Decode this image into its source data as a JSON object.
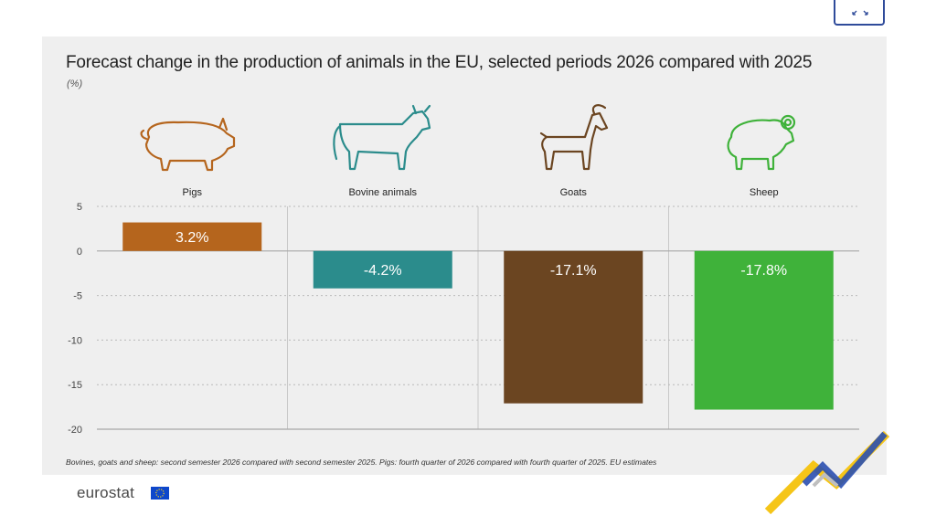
{
  "controls": {
    "expand_icon": "expand-icon"
  },
  "header": {
    "title": "Forecast change in the production of animals in the EU, selected periods 2026 compared with 2025",
    "unit": "(%)"
  },
  "footer": {
    "note": "Bovines, goats and sheep: second semester 2026 compared with second semester 2025. Pigs: fourth quarter of 2026 compared with fourth quarter of 2025. EU estimates",
    "logo_text": "eurostat",
    "logo_flag_icon": "eu-flag-icon"
  },
  "chart_data": {
    "type": "bar",
    "title": "Forecast change in the production of animals in the EU, selected periods 2026 compared with 2025",
    "ylabel": "(%)",
    "xlabel": "",
    "categories": [
      "Pigs",
      "Bovine animals",
      "Goats",
      "Sheep"
    ],
    "values": [
      3.2,
      -4.2,
      -17.1,
      -17.8
    ],
    "data_labels": [
      "3.2%",
      "-4.2%",
      "-17.1%",
      "-17.8%"
    ],
    "colors": [
      "#b5651d",
      "#2b8c8c",
      "#6b4521",
      "#3fb23a"
    ],
    "icons": [
      "pig-icon",
      "cow-icon",
      "goat-icon",
      "sheep-icon"
    ],
    "ylim": [
      -20,
      5
    ],
    "yticks": [
      5,
      0,
      -5,
      -10,
      -15,
      -20
    ],
    "grid": true,
    "legend": "none"
  }
}
